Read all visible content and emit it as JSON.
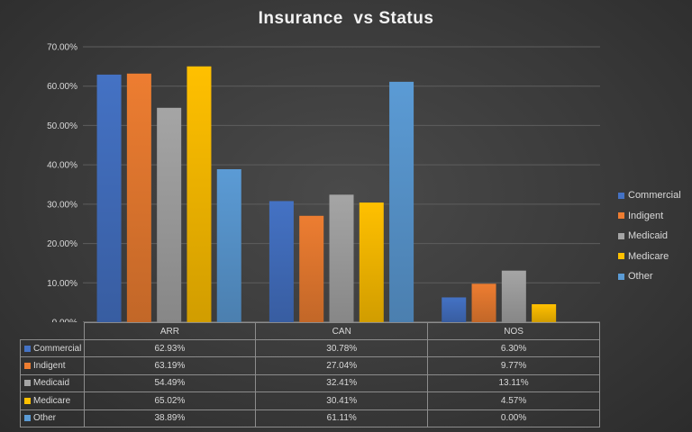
{
  "chart_data": {
    "type": "bar",
    "title": "Insurance  vs Status",
    "categories": [
      "ARR",
      "CAN",
      "NOS"
    ],
    "series": [
      {
        "name": "Commercial",
        "color": "#4472c4",
        "values": [
          62.93,
          30.78,
          6.3
        ],
        "labels": [
          "62.93%",
          "30.78%",
          "6.30%"
        ]
      },
      {
        "name": "Indigent",
        "color": "#ed7d31",
        "values": [
          63.19,
          27.04,
          9.77
        ],
        "labels": [
          "63.19%",
          "27.04%",
          "9.77%"
        ]
      },
      {
        "name": "Medicaid",
        "color": "#a5a5a5",
        "values": [
          54.49,
          32.41,
          13.11
        ],
        "labels": [
          "54.49%",
          "32.41%",
          "13.11%"
        ]
      },
      {
        "name": "Medicare",
        "color": "#ffc000",
        "values": [
          65.02,
          30.41,
          4.57
        ],
        "labels": [
          "65.02%",
          "30.41%",
          "4.57%"
        ]
      },
      {
        "name": "Other",
        "color": "#5b9bd5",
        "values": [
          38.89,
          61.11,
          0.0
        ],
        "labels": [
          "38.89%",
          "61.11%",
          "0.00%"
        ]
      }
    ],
    "ylim": [
      0,
      70
    ],
    "yticks": [
      "0.00%",
      "10.00%",
      "20.00%",
      "30.00%",
      "40.00%",
      "50.00%",
      "60.00%",
      "70.00%"
    ],
    "grid": true,
    "legend_position": "right",
    "data_table": true
  }
}
